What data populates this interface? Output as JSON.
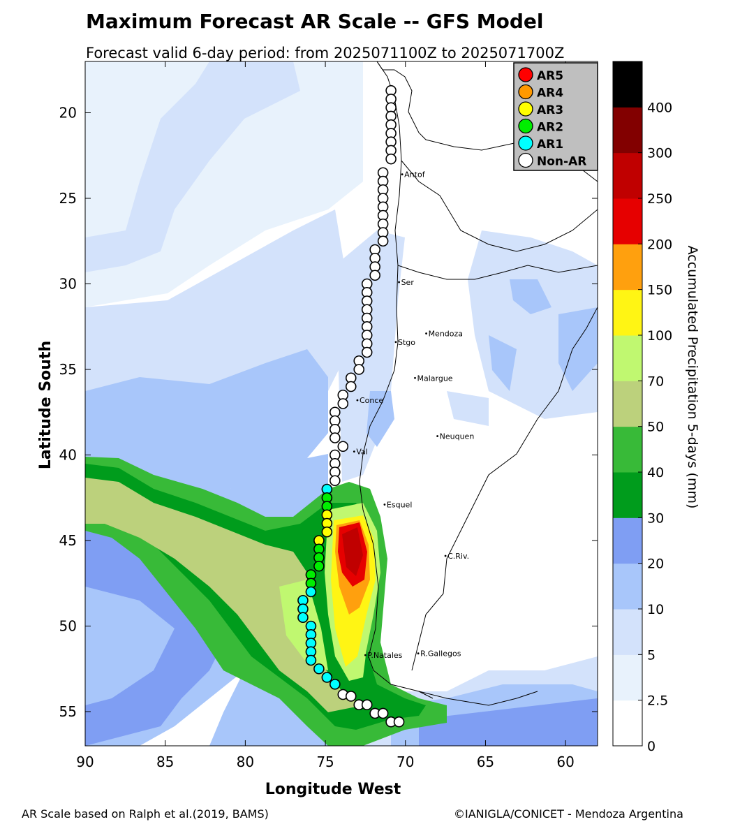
{
  "header": {
    "title": "Maximum Forecast AR Scale -- GFS Model",
    "subtitle": "Forecast valid 6-day period: from 2025071100Z to 2025071700Z"
  },
  "axes": {
    "xlabel": "Longitude West",
    "ylabel": "Latitude South",
    "xlim": [
      90,
      58
    ],
    "ylim": [
      17,
      57
    ],
    "x_ticks": [
      "90",
      "85",
      "80",
      "75",
      "70",
      "65",
      "60"
    ],
    "x_tick_values": [
      90,
      85,
      80,
      75,
      70,
      65,
      60
    ],
    "y_ticks": [
      "20",
      "25",
      "30",
      "35",
      "40",
      "45",
      "50",
      "55"
    ],
    "y_tick_values": [
      20,
      25,
      30,
      35,
      40,
      45,
      50,
      55
    ]
  },
  "legend": {
    "placement": "top-right",
    "items": [
      {
        "label": "AR5",
        "color": "#ff0000"
      },
      {
        "label": "AR4",
        "color": "#ff9900"
      },
      {
        "label": "AR3",
        "color": "#ffff00"
      },
      {
        "label": "AR2",
        "color": "#00ee00"
      },
      {
        "label": "AR1",
        "color": "#00ffff"
      },
      {
        "label": "Non-AR",
        "color": "#ffffff"
      }
    ]
  },
  "colorbar": {
    "label": "Accumulated Precipitation 5-days (mm)",
    "ticks": [
      "0",
      "2.5",
      "5",
      "10",
      "20",
      "30",
      "40",
      "50",
      "70",
      "100",
      "150",
      "200",
      "250",
      "300",
      "400"
    ],
    "colors": [
      "#ffffff",
      "#e8f2fc",
      "#d3e2fb",
      "#a8c6fa",
      "#7f9ef3",
      "#009c1c",
      "#38ba38",
      "#bcd17c",
      "#c0f870",
      "#fff514",
      "#ffa00e",
      "#e60000",
      "#c00000",
      "#820000",
      "#000000"
    ]
  },
  "cities": [
    {
      "name": "Antof",
      "lon": 70.2,
      "lat": 23.6
    },
    {
      "name": "Ser",
      "lon": 70.4,
      "lat": 29.9
    },
    {
      "name": "Stgo",
      "lon": 70.6,
      "lat": 33.4
    },
    {
      "name": "Mendoza",
      "lon": 68.7,
      "lat": 32.9
    },
    {
      "name": "Malargue",
      "lon": 69.4,
      "lat": 35.5
    },
    {
      "name": "Conce",
      "lon": 73.0,
      "lat": 36.8
    },
    {
      "name": "Neuquen",
      "lon": 68.0,
      "lat": 38.9
    },
    {
      "name": "Val",
      "lon": 73.2,
      "lat": 39.8
    },
    {
      "name": "Esquel",
      "lon": 71.3,
      "lat": 42.9
    },
    {
      "name": "C.Riv.",
      "lon": 67.5,
      "lat": 45.9
    },
    {
      "name": "P.Natales",
      "lon": 72.5,
      "lat": 51.7
    },
    {
      "name": "R.Gallegos",
      "lon": 69.2,
      "lat": 51.6
    }
  ],
  "ar_track": [
    {
      "lon": 70.9,
      "lat": 18.7,
      "level": "Non-AR"
    },
    {
      "lon": 70.9,
      "lat": 19.2,
      "level": "Non-AR"
    },
    {
      "lon": 70.9,
      "lat": 19.7,
      "level": "Non-AR"
    },
    {
      "lon": 70.9,
      "lat": 20.2,
      "level": "Non-AR"
    },
    {
      "lon": 70.9,
      "lat": 20.7,
      "level": "Non-AR"
    },
    {
      "lon": 70.9,
      "lat": 21.2,
      "level": "Non-AR"
    },
    {
      "lon": 70.9,
      "lat": 21.7,
      "level": "Non-AR"
    },
    {
      "lon": 70.9,
      "lat": 22.2,
      "level": "Non-AR"
    },
    {
      "lon": 70.9,
      "lat": 22.7,
      "level": "Non-AR"
    },
    {
      "lon": 71.4,
      "lat": 23.5,
      "level": "Non-AR"
    },
    {
      "lon": 71.4,
      "lat": 24.0,
      "level": "Non-AR"
    },
    {
      "lon": 71.4,
      "lat": 24.5,
      "level": "Non-AR"
    },
    {
      "lon": 71.4,
      "lat": 25.0,
      "level": "Non-AR"
    },
    {
      "lon": 71.4,
      "lat": 25.5,
      "level": "Non-AR"
    },
    {
      "lon": 71.4,
      "lat": 26.0,
      "level": "Non-AR"
    },
    {
      "lon": 71.4,
      "lat": 26.5,
      "level": "Non-AR"
    },
    {
      "lon": 71.4,
      "lat": 27.0,
      "level": "Non-AR"
    },
    {
      "lon": 71.4,
      "lat": 27.5,
      "level": "Non-AR"
    },
    {
      "lon": 71.9,
      "lat": 28.0,
      "level": "Non-AR"
    },
    {
      "lon": 71.9,
      "lat": 28.5,
      "level": "Non-AR"
    },
    {
      "lon": 71.9,
      "lat": 29.0,
      "level": "Non-AR"
    },
    {
      "lon": 71.9,
      "lat": 29.5,
      "level": "Non-AR"
    },
    {
      "lon": 72.4,
      "lat": 30.0,
      "level": "Non-AR"
    },
    {
      "lon": 72.4,
      "lat": 30.5,
      "level": "Non-AR"
    },
    {
      "lon": 72.4,
      "lat": 31.0,
      "level": "Non-AR"
    },
    {
      "lon": 72.4,
      "lat": 31.5,
      "level": "Non-AR"
    },
    {
      "lon": 72.4,
      "lat": 32.0,
      "level": "Non-AR"
    },
    {
      "lon": 72.4,
      "lat": 32.5,
      "level": "Non-AR"
    },
    {
      "lon": 72.4,
      "lat": 33.0,
      "level": "Non-AR"
    },
    {
      "lon": 72.4,
      "lat": 33.5,
      "level": "Non-AR"
    },
    {
      "lon": 72.4,
      "lat": 34.0,
      "level": "Non-AR"
    },
    {
      "lon": 72.9,
      "lat": 34.5,
      "level": "Non-AR"
    },
    {
      "lon": 72.9,
      "lat": 35.0,
      "level": "Non-AR"
    },
    {
      "lon": 73.4,
      "lat": 35.5,
      "level": "Non-AR"
    },
    {
      "lon": 73.4,
      "lat": 36.0,
      "level": "Non-AR"
    },
    {
      "lon": 73.9,
      "lat": 36.5,
      "level": "Non-AR"
    },
    {
      "lon": 73.9,
      "lat": 37.0,
      "level": "Non-AR"
    },
    {
      "lon": 74.4,
      "lat": 37.5,
      "level": "Non-AR"
    },
    {
      "lon": 74.4,
      "lat": 38.0,
      "level": "Non-AR"
    },
    {
      "lon": 74.4,
      "lat": 38.5,
      "level": "Non-AR"
    },
    {
      "lon": 74.4,
      "lat": 39.0,
      "level": "Non-AR"
    },
    {
      "lon": 73.9,
      "lat": 39.5,
      "level": "Non-AR"
    },
    {
      "lon": 74.4,
      "lat": 40.0,
      "level": "Non-AR"
    },
    {
      "lon": 74.4,
      "lat": 40.5,
      "level": "Non-AR"
    },
    {
      "lon": 74.4,
      "lat": 41.0,
      "level": "Non-AR"
    },
    {
      "lon": 74.4,
      "lat": 41.5,
      "level": "Non-AR"
    },
    {
      "lon": 74.9,
      "lat": 42.0,
      "level": "AR1"
    },
    {
      "lon": 74.9,
      "lat": 42.5,
      "level": "AR2"
    },
    {
      "lon": 74.9,
      "lat": 43.0,
      "level": "AR2"
    },
    {
      "lon": 74.9,
      "lat": 43.5,
      "level": "AR3"
    },
    {
      "lon": 74.9,
      "lat": 44.0,
      "level": "AR3"
    },
    {
      "lon": 74.9,
      "lat": 44.5,
      "level": "AR3"
    },
    {
      "lon": 75.4,
      "lat": 45.0,
      "level": "AR3"
    },
    {
      "lon": 75.4,
      "lat": 45.5,
      "level": "AR2"
    },
    {
      "lon": 75.4,
      "lat": 46.0,
      "level": "AR2"
    },
    {
      "lon": 75.4,
      "lat": 46.5,
      "level": "AR2"
    },
    {
      "lon": 75.9,
      "lat": 47.0,
      "level": "AR2"
    },
    {
      "lon": 75.9,
      "lat": 47.5,
      "level": "AR2"
    },
    {
      "lon": 75.9,
      "lat": 48.0,
      "level": "AR1"
    },
    {
      "lon": 76.4,
      "lat": 48.5,
      "level": "AR1"
    },
    {
      "lon": 76.4,
      "lat": 49.0,
      "level": "AR1"
    },
    {
      "lon": 76.4,
      "lat": 49.5,
      "level": "AR1"
    },
    {
      "lon": 75.9,
      "lat": 50.0,
      "level": "AR1"
    },
    {
      "lon": 75.9,
      "lat": 50.5,
      "level": "AR1"
    },
    {
      "lon": 75.9,
      "lat": 51.0,
      "level": "AR1"
    },
    {
      "lon": 75.9,
      "lat": 51.5,
      "level": "AR1"
    },
    {
      "lon": 75.9,
      "lat": 52.0,
      "level": "AR1"
    },
    {
      "lon": 75.4,
      "lat": 52.5,
      "level": "AR1"
    },
    {
      "lon": 74.9,
      "lat": 53.0,
      "level": "AR1"
    },
    {
      "lon": 74.4,
      "lat": 53.4,
      "level": "AR1"
    },
    {
      "lon": 73.9,
      "lat": 54.0,
      "level": "Non-AR"
    },
    {
      "lon": 73.4,
      "lat": 54.1,
      "level": "Non-AR"
    },
    {
      "lon": 72.9,
      "lat": 54.6,
      "level": "Non-AR"
    },
    {
      "lon": 72.4,
      "lat": 54.6,
      "level": "Non-AR"
    },
    {
      "lon": 71.9,
      "lat": 55.1,
      "level": "Non-AR"
    },
    {
      "lon": 71.4,
      "lat": 55.1,
      "level": "Non-AR"
    },
    {
      "lon": 70.9,
      "lat": 55.6,
      "level": "Non-AR"
    },
    {
      "lon": 70.4,
      "lat": 55.6,
      "level": "Non-AR"
    }
  ],
  "footer": {
    "left": "AR Scale based on Ralph et al.(2019, BAMS)",
    "right": "©IANIGLA/CONICET - Mendoza Argentina"
  }
}
